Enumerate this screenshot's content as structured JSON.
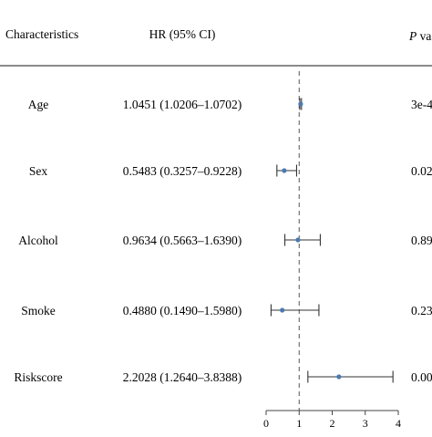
{
  "header": {
    "characteristics": "Characteristics",
    "hr_ci": "HR (95% CI)",
    "p_value_italic": "P",
    "p_value_rest": " va"
  },
  "chart_data": {
    "type": "forest",
    "reference_line": 1,
    "xlim": [
      0,
      4
    ],
    "x_ticks": [
      "0",
      "1",
      "2",
      "3",
      "4"
    ],
    "rows": [
      {
        "name": "Age",
        "hr": 1.0451,
        "lower": 1.0206,
        "upper": 1.0702,
        "ci_text": "1.0451 (1.0206–1.0702)",
        "p_text": "3e-4"
      },
      {
        "name": "Sex",
        "hr": 0.5483,
        "lower": 0.3257,
        "upper": 0.9228,
        "ci_text": "0.5483 (0.3257–0.9228)",
        "p_text": "0.02"
      },
      {
        "name": "Alcohol",
        "hr": 0.9634,
        "lower": 0.5663,
        "upper": 1.639,
        "ci_text": "0.9634 (0.5663–1.6390)",
        "p_text": "0.89"
      },
      {
        "name": "Smoke",
        "hr": 0.488,
        "lower": 0.149,
        "upper": 1.598,
        "ci_text": "0.4880 (0.1490–1.5980)",
        "p_text": "0.23"
      },
      {
        "name": "Riskscore",
        "hr": 2.2028,
        "lower": 1.264,
        "upper": 3.8388,
        "ci_text": "2.2028 (1.2640–3.8388)",
        "p_text": "0.00"
      }
    ],
    "colors": {
      "point": "#4a7ab0",
      "line": "#333333",
      "rule": "#444444"
    }
  }
}
